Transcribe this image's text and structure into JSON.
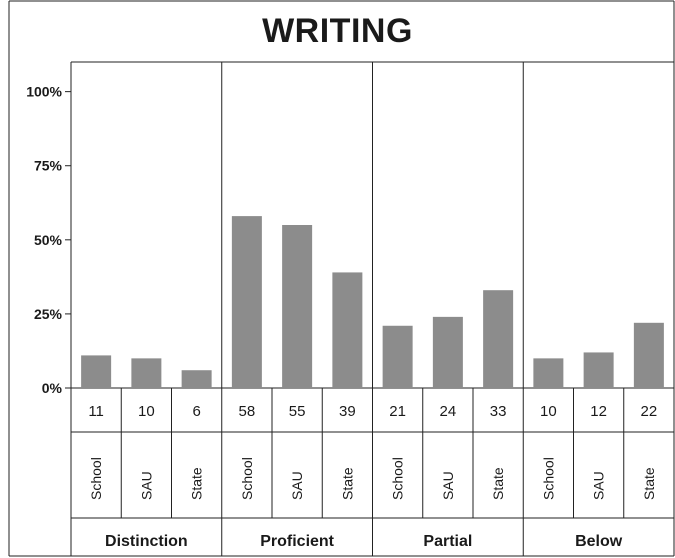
{
  "chart_data": {
    "type": "bar",
    "title": "WRITING",
    "yticks": [
      "0%",
      "25%",
      "50%",
      "75%",
      "100%"
    ],
    "ylim": [
      0,
      110
    ],
    "grid": false,
    "bar_color": "#8c8c8c",
    "groups": [
      {
        "label": "Distinction",
        "categories": [
          "School",
          "SAU",
          "State"
        ],
        "values": [
          11,
          10,
          6
        ]
      },
      {
        "label": "Proficient",
        "categories": [
          "School",
          "SAU",
          "State"
        ],
        "values": [
          58,
          55,
          39
        ]
      },
      {
        "label": "Partial",
        "categories": [
          "School",
          "SAU",
          "State"
        ],
        "values": [
          21,
          24,
          33
        ]
      },
      {
        "label": "Below",
        "categories": [
          "School",
          "SAU",
          "State"
        ],
        "values": [
          10,
          12,
          22
        ]
      }
    ]
  }
}
